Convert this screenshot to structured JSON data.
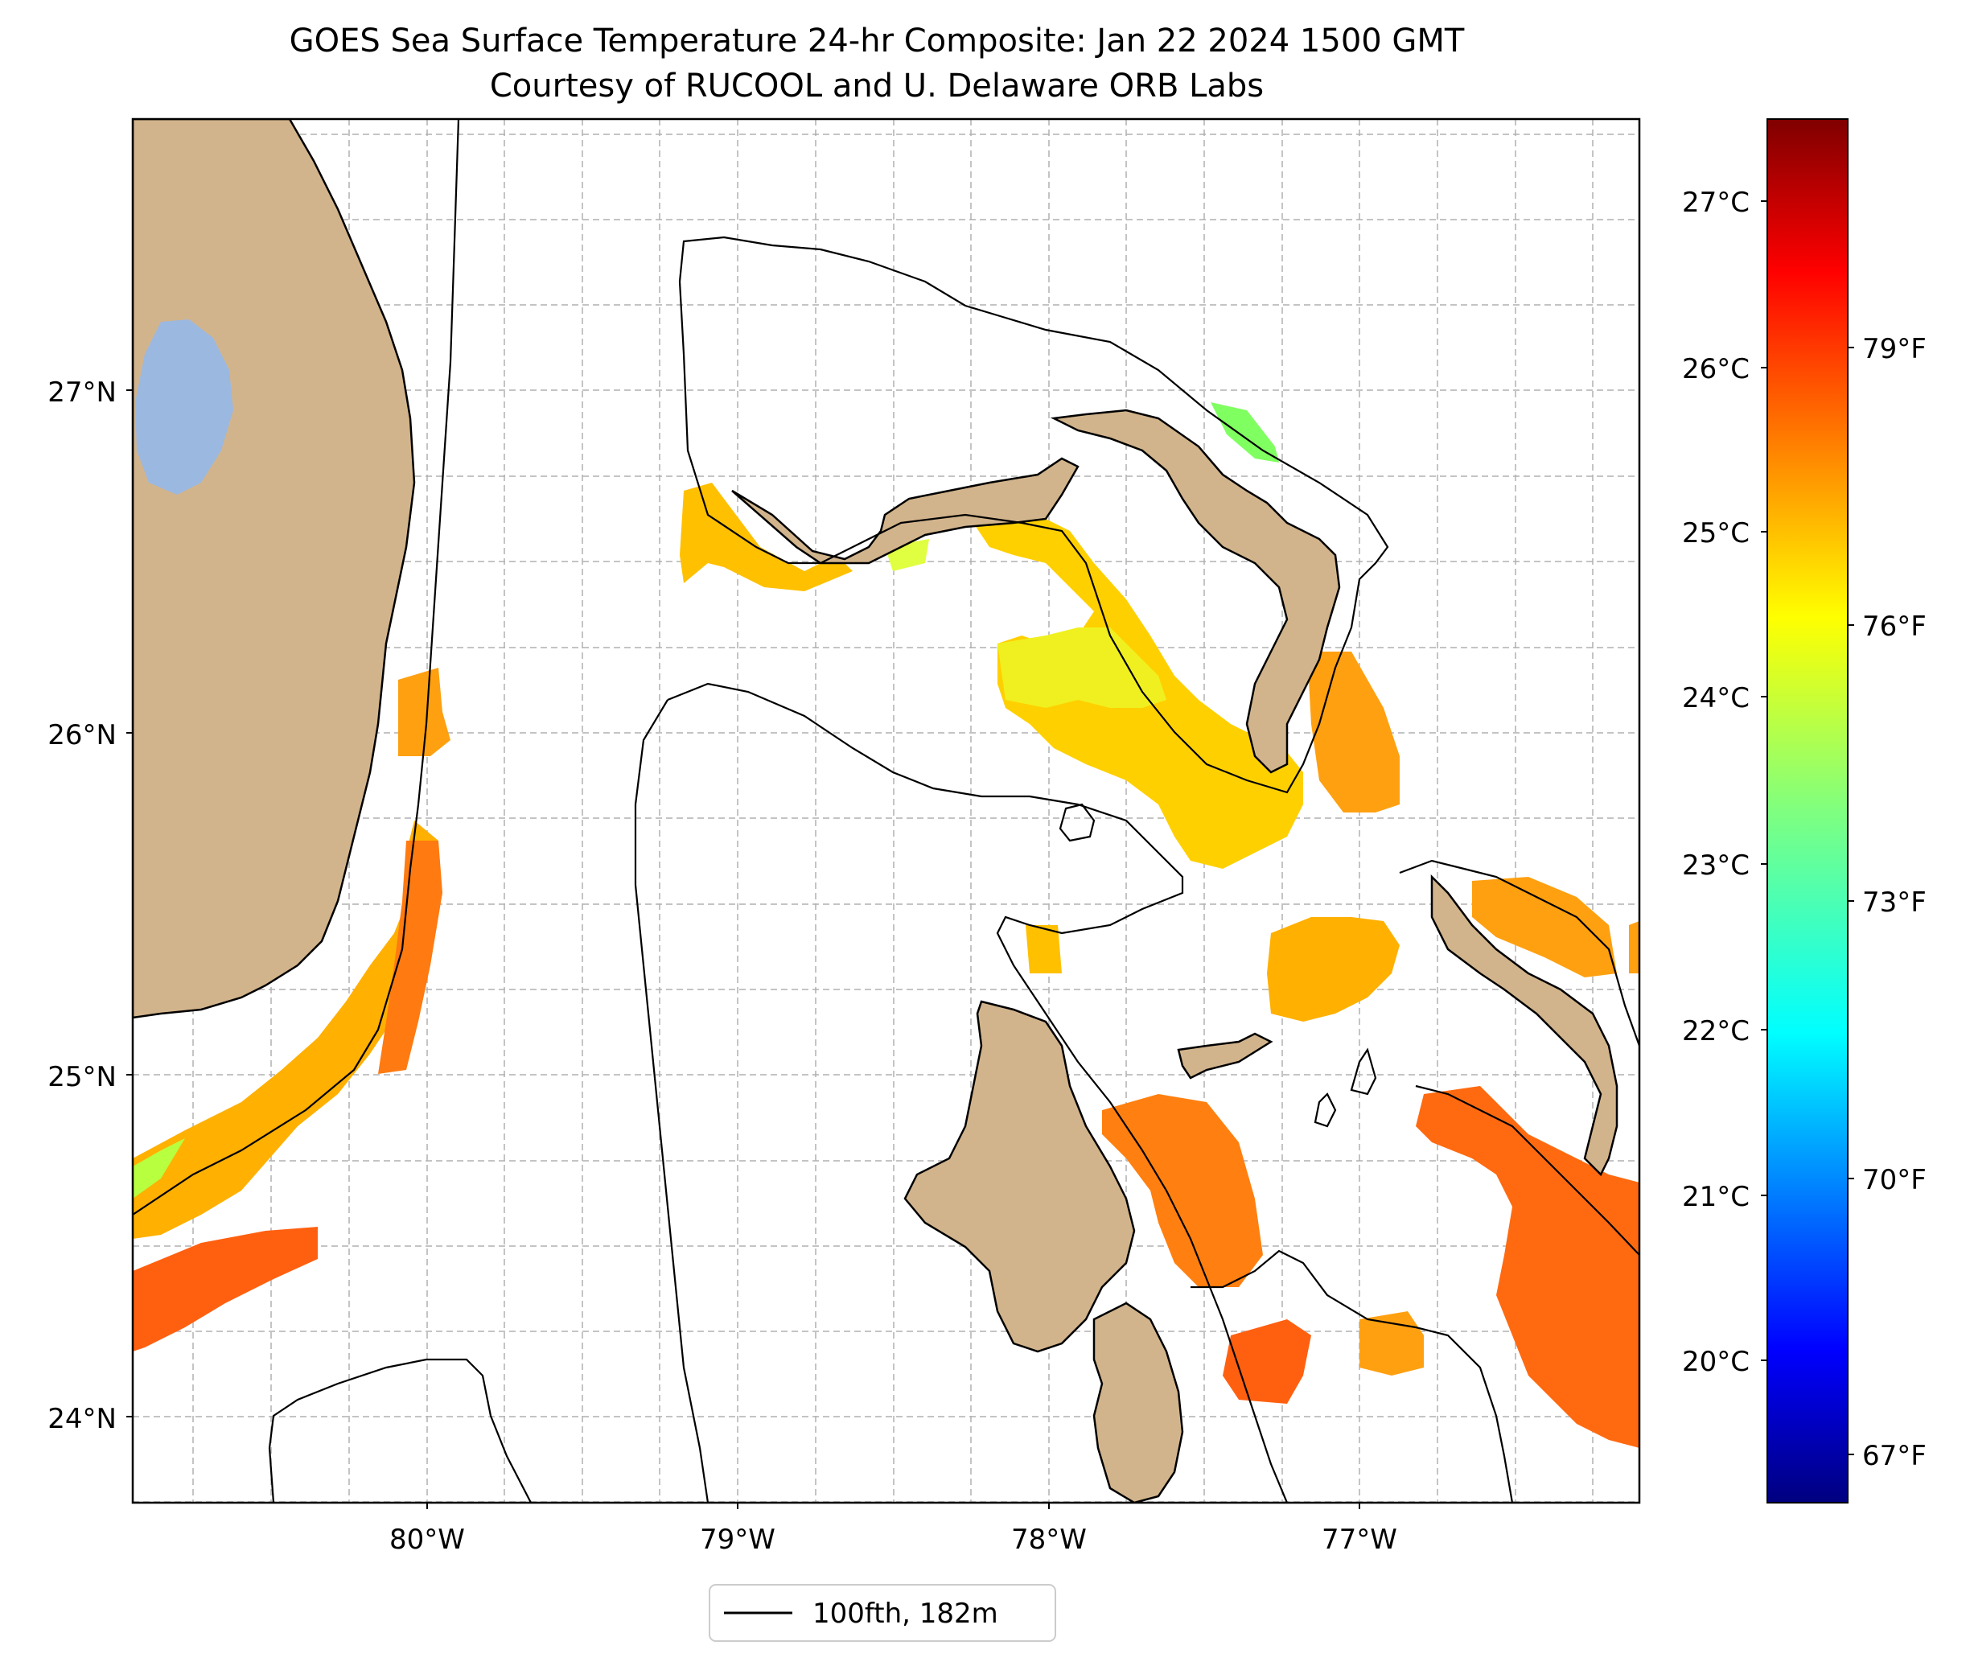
{
  "title": {
    "line1": "GOES Sea Surface Temperature 24-hr Composite: Jan 22 2024 1500 GMT",
    "line2": "Courtesy of RUCOOL and U. Delaware ORB Labs"
  },
  "map": {
    "lat_ticks": [
      "27°N",
      "26°N",
      "25°N",
      "24°N"
    ],
    "lon_ticks": [
      "80°W",
      "79°W",
      "78°W",
      "77°W"
    ],
    "lon_range": [
      -80.95,
      -76.1
    ],
    "lat_range": [
      23.75,
      27.8
    ],
    "grid": true,
    "colors": {
      "land": "#d2b48c",
      "lake": "#9bb8e0",
      "contour": "#000000",
      "grid": "#b0b0b0"
    }
  },
  "colorbar": {
    "celsius_ticks": [
      "27°C",
      "26°C",
      "25°C",
      "24°C",
      "23°C",
      "22°C",
      "21°C",
      "20°C"
    ],
    "fahrenheit_ticks": [
      "79°F",
      "76°F",
      "73°F",
      "70°F",
      "67°F"
    ],
    "colormap": "jet",
    "range_c": [
      19.3,
      27.7
    ]
  },
  "legend": {
    "label": "100fth, 182m"
  }
}
